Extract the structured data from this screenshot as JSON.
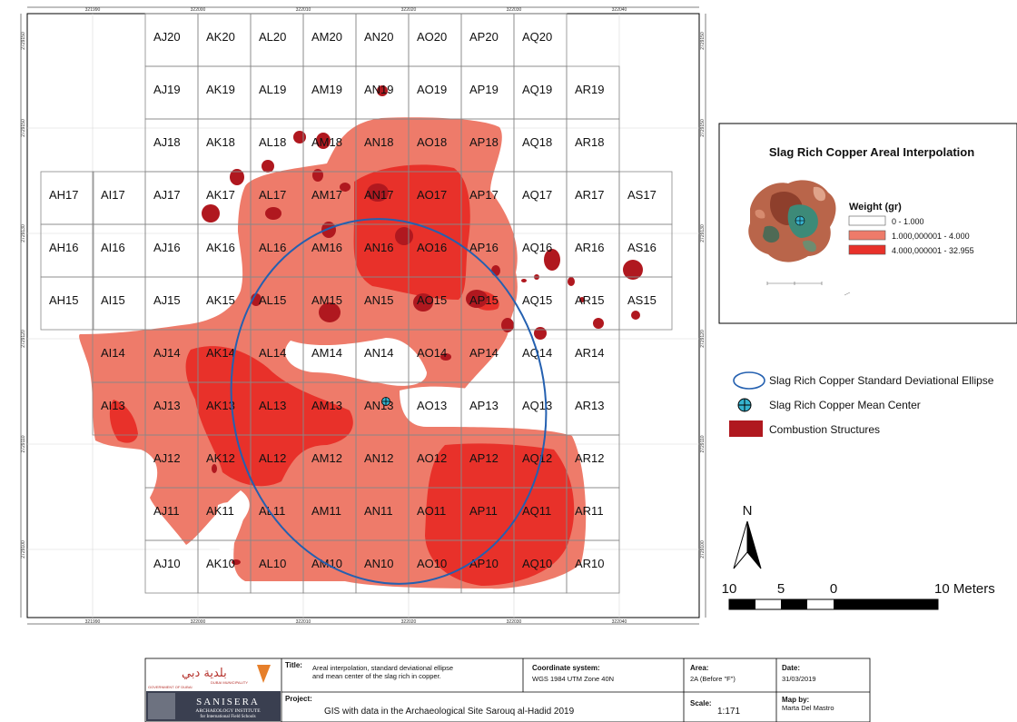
{
  "map": {
    "x_ticks": [
      "321990",
      "322000",
      "322010",
      "322020",
      "322030",
      "322040"
    ],
    "y_ticks": [
      "2729150",
      "2729140",
      "2729130",
      "2729120",
      "2729110",
      "2729100"
    ]
  },
  "grid_rows": [
    {
      "cells": [
        "AJ20",
        "AK20",
        "AL20",
        "AM20",
        "AN20",
        "AO20",
        "AP20",
        "AQ20"
      ]
    },
    {
      "cells": [
        "AJ19",
        "AK19",
        "AL19",
        "AM19",
        "AN19",
        "AO19",
        "AP19",
        "AQ19",
        "AR19"
      ]
    },
    {
      "cells": [
        "AJ18",
        "AK18",
        "AL18",
        "AM18",
        "AN18",
        "AO18",
        "AP18",
        "AQ18",
        "AR18"
      ]
    },
    {
      "cells": [
        "AH17",
        "AI17",
        "AJ17",
        "AK17",
        "AL17",
        "AM17",
        "AN17",
        "AO17",
        "AP17",
        "AQ17",
        "AR17",
        "AS17"
      ]
    },
    {
      "cells": [
        "AH16",
        "AI16",
        "AJ16",
        "AK16",
        "AL16",
        "AM16",
        "AN16",
        "AO16",
        "AP16",
        "AQ16",
        "AR16",
        "AS16"
      ]
    },
    {
      "cells": [
        "AH15",
        "AI15",
        "AJ15",
        "AK15",
        "AL15",
        "AM15",
        "AN15",
        "AO15",
        "AP15",
        "AQ15",
        "AR15",
        "AS15"
      ]
    },
    {
      "cells": [
        "AI14",
        "AJ14",
        "AK14",
        "AL14",
        "AM14",
        "AN14",
        "AO14",
        "AP14",
        "AQ14",
        "AR14"
      ]
    },
    {
      "cells": [
        "AI13",
        "AJ13",
        "AK13",
        "AL13",
        "AM13",
        "AN13",
        "AO13",
        "AP13",
        "AQ13",
        "AR13"
      ]
    },
    {
      "cells": [
        "AJ12",
        "AK12",
        "AL12",
        "AM12",
        "AN12",
        "AO12",
        "AP12",
        "AQ12",
        "AR12"
      ]
    },
    {
      "cells": [
        "AJ11",
        "AK11",
        "AL11",
        "AM11",
        "AN11",
        "AO11",
        "AP11",
        "AQ11",
        "AR11"
      ]
    },
    {
      "cells": [
        "AJ10",
        "AK10",
        "AL10",
        "AM10",
        "AN10",
        "AO10",
        "AP10",
        "AQ10",
        "AR10"
      ]
    }
  ],
  "legend": {
    "title": "Slag Rich Copper Areal Interpolation",
    "subtitle": "Weight (gr)",
    "classes": [
      {
        "label": "0 - 1.000",
        "color": "#ffffff"
      },
      {
        "label": "1.000,000001 - 4.000",
        "color": "#ee7b6a"
      },
      {
        "label": "4.000,000001 - 32.955",
        "color": "#e8312a"
      }
    ]
  },
  "symbols": {
    "ellipse": "Slag Rich Copper Standard Deviational Ellipse",
    "mean_center": "Slag Rich Copper Mean Center",
    "combustion": "Combustion Structures"
  },
  "colors": {
    "low": "#ee7b6a",
    "high": "#e8312a",
    "combustion": "#b0181f",
    "ellipse": "#2460b0",
    "mean_center": "#36b3cf"
  },
  "north": "N",
  "scale_bar": {
    "labels": [
      "10",
      "5",
      "0",
      "10 Meters"
    ]
  },
  "title_block": {
    "logo_arabic": "بلدية دبي",
    "logo_sub1": "DUBAI MUNICIPALITY",
    "logo_sub2": "GOVERNMENT OF DUBAI",
    "logo_brand": "SANISERA",
    "logo_inst1": "ARCHAEOLOGY INSTITUTE",
    "logo_inst2": "for International Field Schools",
    "title_label": "Title:",
    "title_line1": "Areal interpolation, standard deviational ellipse",
    "title_line2": "and mean center of  the slag rich in copper.",
    "coord_label": "Coordinate system:",
    "coord_value": "WGS 1984 UTM Zone 40N",
    "area_label": "Area:",
    "area_value": "2A (Before \"F\")",
    "date_label": "Date:",
    "date_value": "31/03/2019",
    "project_label": "Project:",
    "project_value": "GIS with data in the Archaeological Site Sarouq al-Hadid 2019",
    "scale_label": "Scale:",
    "scale_value": "1:171",
    "mapby_label": "Map by:",
    "mapby_value": "Marta Del Mastro"
  }
}
